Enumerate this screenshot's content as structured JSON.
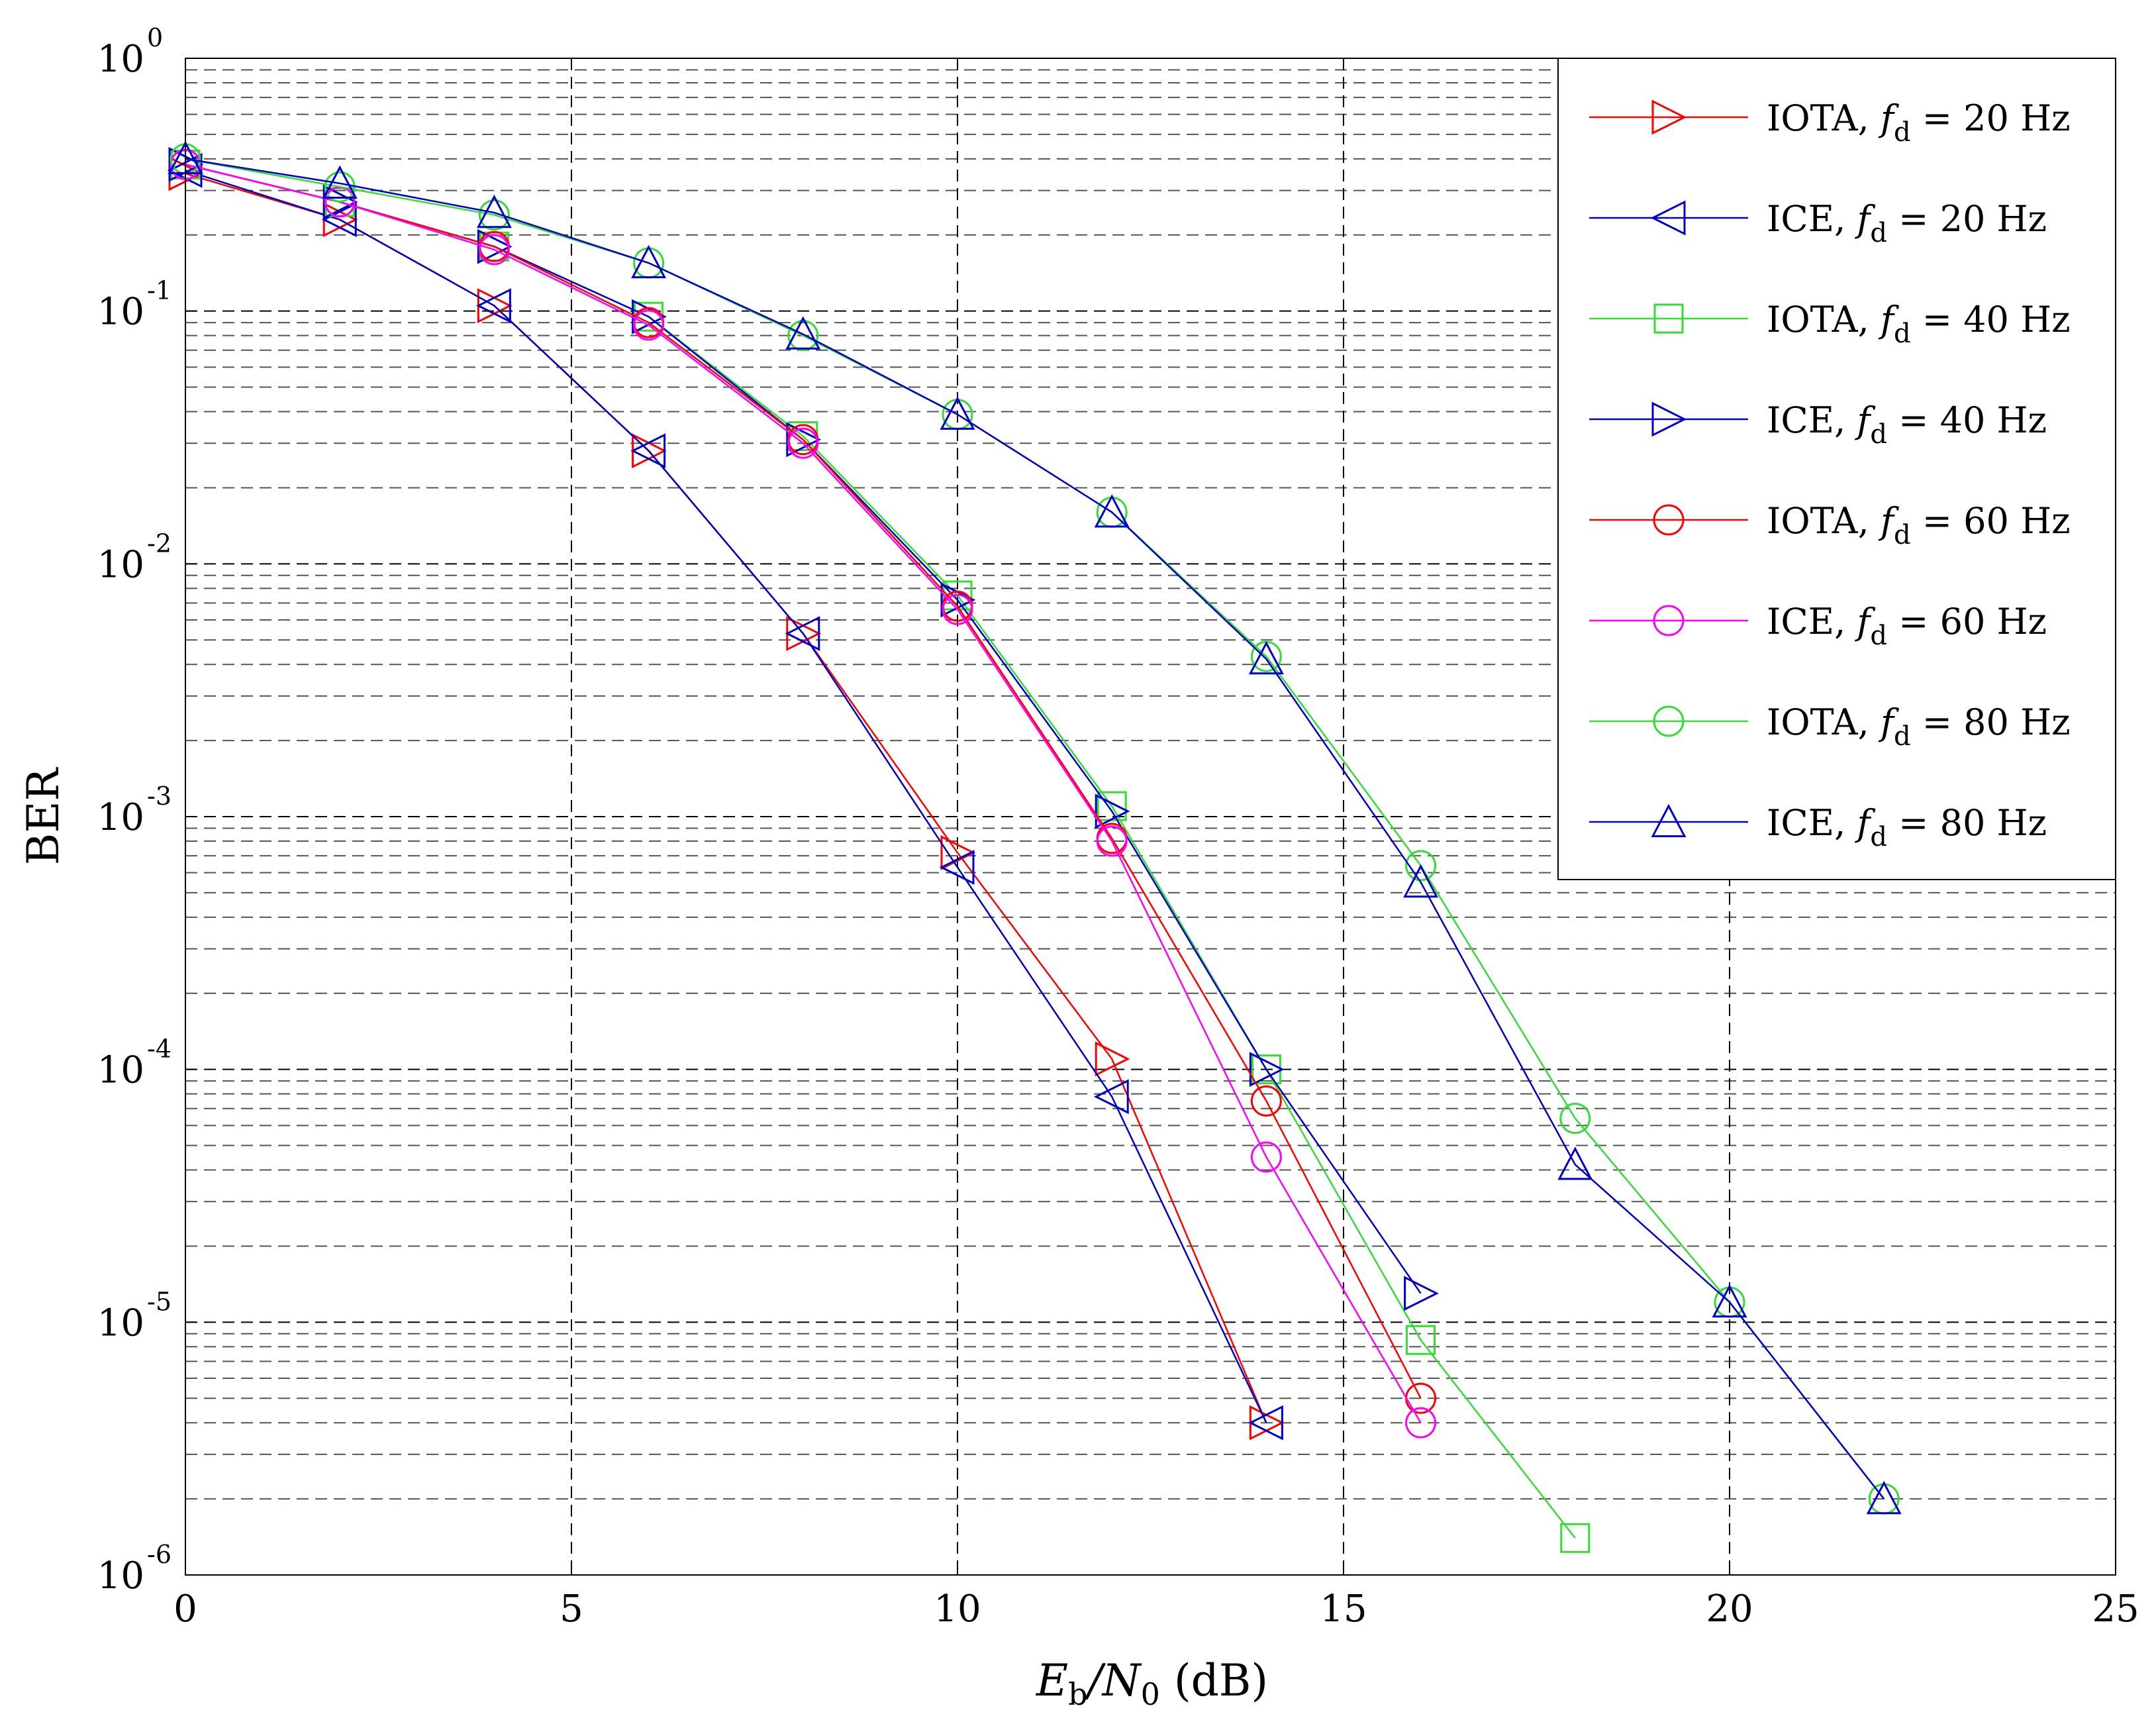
{
  "chart_data": {
    "type": "line",
    "title": "",
    "xlabel": {
      "main": "E",
      "sub": "b",
      "mid": "/N",
      "sub2": "0",
      "unit": " (dB)"
    },
    "ylabel": "BER",
    "xlim": [
      0,
      25
    ],
    "ylim": [
      1e-06,
      1
    ],
    "yscale": "log",
    "grid": true,
    "legend_position": "top-right",
    "x_ticks": [
      "0",
      "5",
      "10",
      "15",
      "20",
      "25"
    ],
    "y_ticks": [
      {
        "base": "10",
        "exp": "0"
      },
      {
        "base": "10",
        "exp": "-1"
      },
      {
        "base": "10",
        "exp": "-2"
      },
      {
        "base": "10",
        "exp": "-3"
      },
      {
        "base": "10",
        "exp": "-4"
      },
      {
        "base": "10",
        "exp": "-5"
      },
      {
        "base": "10",
        "exp": "-6"
      }
    ],
    "series": [
      {
        "name": "IOTA",
        "fd": "20 Hz",
        "color": "#ff0000",
        "marker": "triangle-right",
        "x": [
          0,
          2,
          4,
          6,
          8,
          10,
          12,
          14
        ],
        "y": [
          0.35,
          0.23,
          0.105,
          0.028,
          0.0053,
          0.00072,
          0.00011,
          4e-06
        ]
      },
      {
        "name": "ICE",
        "fd": "20 Hz",
        "color": "#0000cc",
        "marker": "triangle-left",
        "x": [
          0,
          2,
          4,
          6,
          8,
          10,
          12,
          14
        ],
        "y": [
          0.36,
          0.23,
          0.105,
          0.028,
          0.0053,
          0.00063,
          7.8e-05,
          4e-06
        ]
      },
      {
        "name": "IOTA",
        "fd": "40 Hz",
        "color": "#33dd33",
        "marker": "square",
        "x": [
          0,
          2,
          4,
          6,
          8,
          10,
          12,
          14,
          16,
          18
        ],
        "y": [
          0.38,
          0.27,
          0.18,
          0.095,
          0.032,
          0.0075,
          0.0011,
          0.0001,
          8.5e-06,
          1.4e-06
        ]
      },
      {
        "name": "ICE",
        "fd": "40 Hz",
        "color": "#0000cc",
        "marker": "triangle-right",
        "x": [
          0,
          2,
          4,
          6,
          8,
          10,
          12,
          14,
          16
        ],
        "y": [
          0.38,
          0.27,
          0.18,
          0.095,
          0.031,
          0.0072,
          0.00105,
          0.0001,
          1.3e-05
        ]
      },
      {
        "name": "IOTA",
        "fd": "60 Hz",
        "color": "#ff0000",
        "marker": "circle",
        "x": [
          0,
          2,
          4,
          6,
          8,
          10,
          12,
          14,
          16
        ],
        "y": [
          0.38,
          0.27,
          0.18,
          0.09,
          0.031,
          0.0068,
          0.00082,
          7.5e-05,
          5e-06
        ]
      },
      {
        "name": "ICE",
        "fd": "60 Hz",
        "color": "#ff00ff",
        "marker": "circle",
        "x": [
          0,
          2,
          4,
          6,
          8,
          10,
          12,
          14,
          16
        ],
        "y": [
          0.38,
          0.27,
          0.175,
          0.088,
          0.03,
          0.0066,
          0.0008,
          4.5e-05,
          4e-06
        ]
      },
      {
        "name": "IOTA",
        "fd": "80 Hz",
        "color": "#33dd33",
        "marker": "circle",
        "x": [
          0,
          2,
          4,
          6,
          8,
          10,
          12,
          14,
          16,
          18,
          20,
          22
        ],
        "y": [
          0.4,
          0.31,
          0.24,
          0.155,
          0.08,
          0.039,
          0.016,
          0.0043,
          0.00064,
          6.4e-05,
          1.2e-05,
          2e-06
        ]
      },
      {
        "name": "ICE",
        "fd": "80 Hz",
        "color": "#0000cc",
        "marker": "triangle-up",
        "x": [
          0,
          2,
          4,
          6,
          8,
          10,
          12,
          14,
          16,
          18,
          20,
          22
        ],
        "y": [
          0.4,
          0.32,
          0.245,
          0.155,
          0.081,
          0.039,
          0.016,
          0.0042,
          0.00055,
          4.2e-05,
          1.2e-05,
          2e-06
        ]
      }
    ]
  }
}
